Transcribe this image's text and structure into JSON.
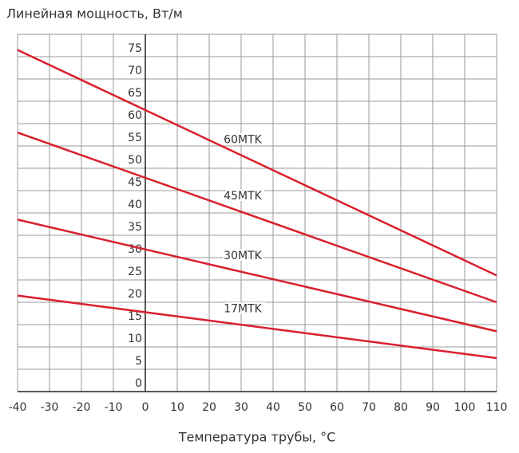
{
  "chart_data": {
    "type": "line",
    "ylabel": "Линейная мощность, Вт/м",
    "xlabel": "Температура трубы, °C",
    "x": [
      -40,
      110
    ],
    "series": [
      {
        "name": "60MTK",
        "color": "#d9202c",
        "values": [
          76.5,
          26
        ]
      },
      {
        "name": "45MTK",
        "color": "#d9202c",
        "values": [
          58,
          20
        ]
      },
      {
        "name": "30MTK",
        "color": "#d9202c",
        "values": [
          38.5,
          13.5
        ]
      },
      {
        "name": "17MTK",
        "color": "#d9202c",
        "values": [
          21.5,
          7.5
        ]
      }
    ],
    "xlim": [
      -40,
      110
    ],
    "xticks": [
      -40,
      -30,
      -20,
      -10,
      0,
      10,
      20,
      30,
      40,
      50,
      60,
      70,
      80,
      90,
      100,
      110
    ],
    "ylim": [
      0,
      80
    ],
    "yticks": [
      0,
      5,
      10,
      15,
      20,
      25,
      30,
      35,
      40,
      45,
      50,
      55,
      60,
      65,
      70,
      75
    ],
    "grid": true
  }
}
